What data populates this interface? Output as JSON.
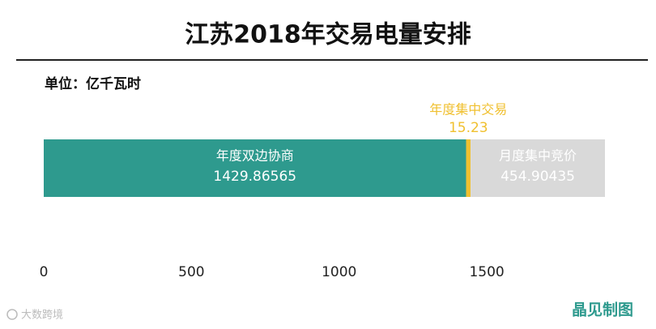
{
  "chart_data": {
    "type": "bar",
    "orientation": "horizontal",
    "stacked": true,
    "title": "江苏2018年交易电量安排",
    "subtitle": "单位：亿千瓦时",
    "categories": [
      null
    ],
    "series": [
      {
        "name": "年度双边协商",
        "color": "#2e9a8e",
        "values": [
          1429.86565
        ]
      },
      {
        "name": "年度集中交易",
        "color": "#f0c030",
        "values": [
          15.23
        ]
      },
      {
        "name": "月度集中竞价",
        "color": "#d9d9d9",
        "values": [
          454.90435
        ]
      }
    ],
    "xlim": [
      0,
      1900
    ],
    "xticks": [
      0,
      500,
      1000,
      1500
    ],
    "grid": false,
    "credit": "晶见制图",
    "watermark": "大数跨境"
  }
}
